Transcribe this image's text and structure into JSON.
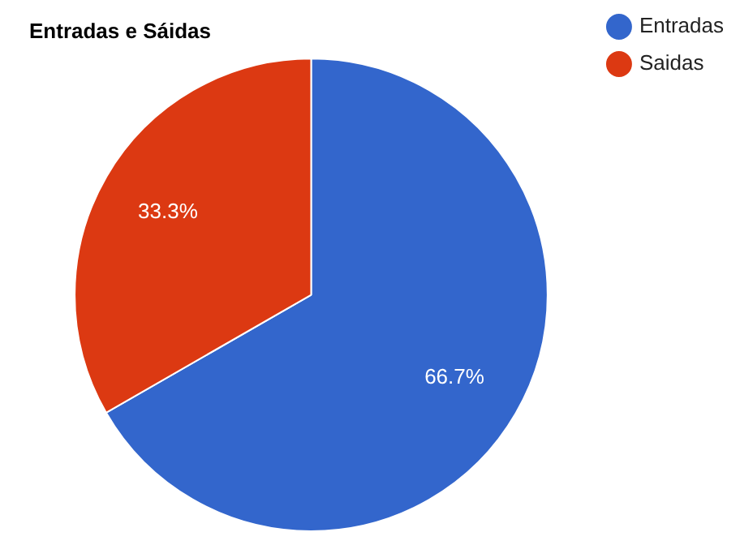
{
  "chart_data": {
    "type": "pie",
    "title": "Entradas e Sáidas",
    "categories": [
      "Entradas",
      "Saidas"
    ],
    "values": [
      66.7,
      33.3
    ],
    "colors": [
      "#3366cc",
      "#dc3912"
    ],
    "value_labels": [
      "66.7%",
      "33.3%"
    ],
    "legend": "top right"
  }
}
